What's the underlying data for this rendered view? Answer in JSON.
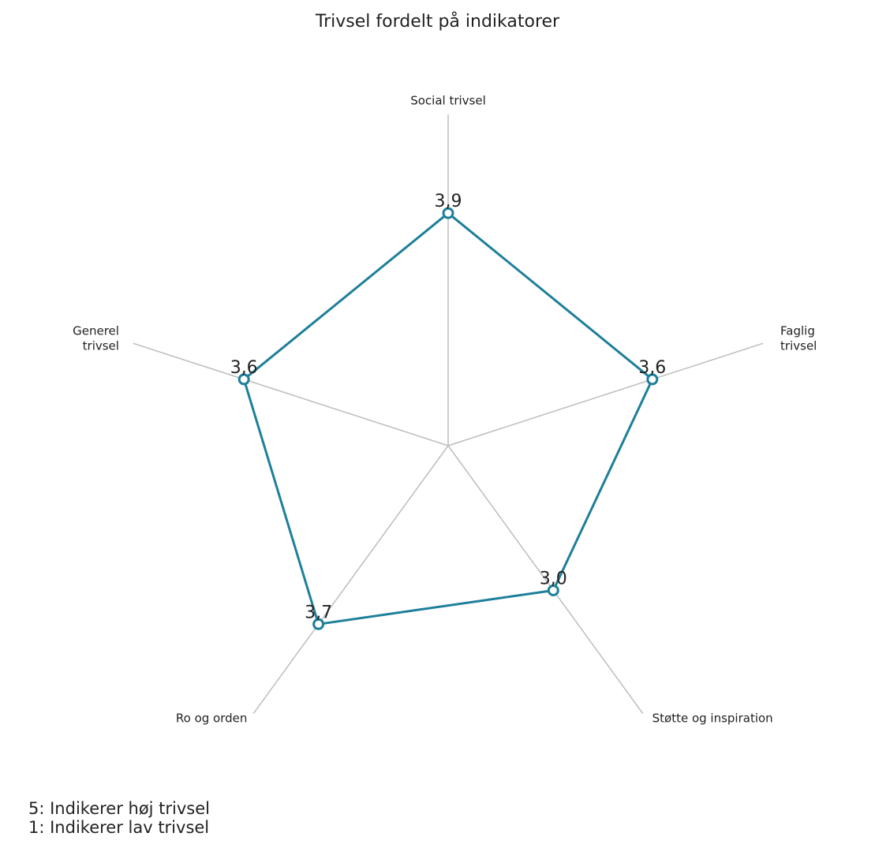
{
  "chart_data": {
    "type": "radar",
    "title": "Trivsel fordelt på indikatorer",
    "scale_max": 5,
    "axes": [
      {
        "label_lines": [
          "Social trivsel"
        ]
      },
      {
        "label_lines": [
          "Faglig",
          "trivsel"
        ]
      },
      {
        "label_lines": [
          "Støtte og inspiration"
        ]
      },
      {
        "label_lines": [
          "Ro og orden"
        ]
      },
      {
        "label_lines": [
          "Generel",
          "trivsel"
        ]
      }
    ],
    "series": [
      {
        "values": [
          3.9,
          3.6,
          3.0,
          3.7,
          3.6
        ],
        "value_labels": [
          "3,9",
          "3,6",
          "3,0",
          "3,7",
          "3,6"
        ],
        "color": "#1e7f9a"
      }
    ],
    "axis_color": "#bdbdbd",
    "grid": false,
    "notes": [
      "5: Indikerer høj trivsel",
      "1: Indikerer lav trivsel"
    ]
  }
}
